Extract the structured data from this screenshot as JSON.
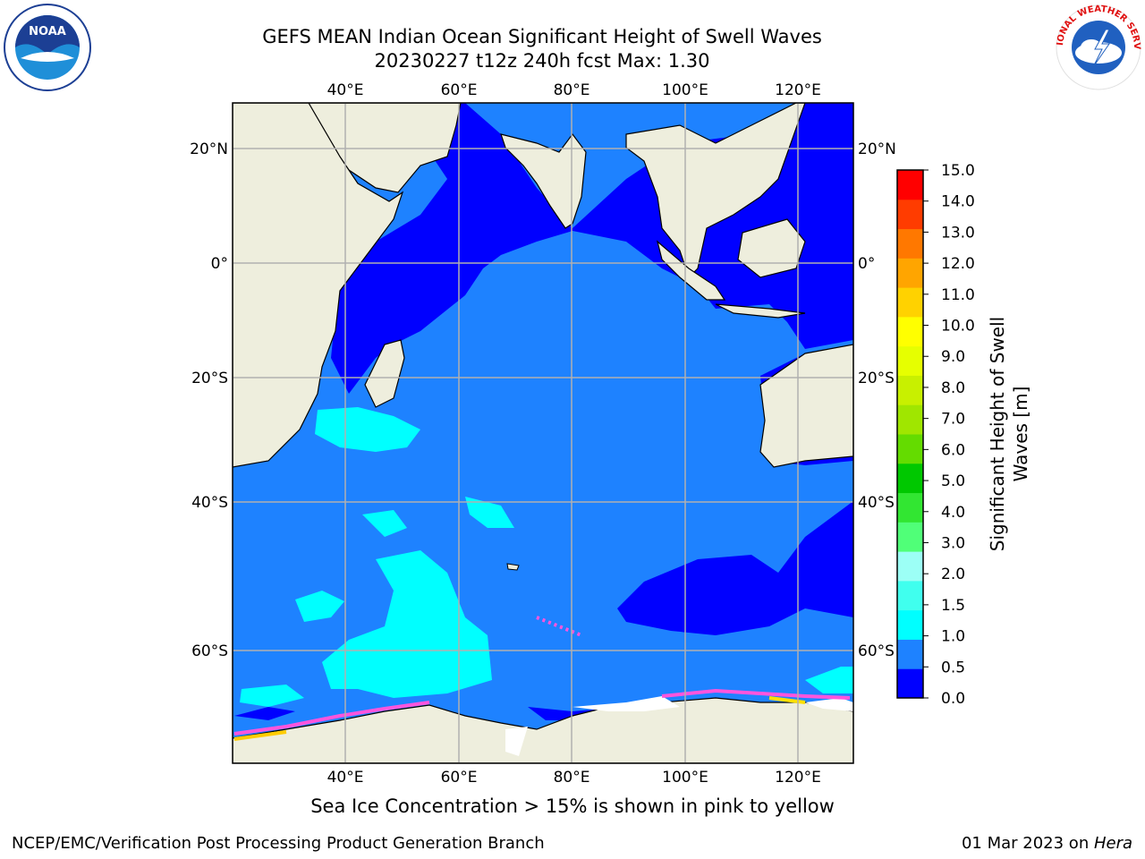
{
  "title": {
    "line1": "GEFS MEAN Indian Ocean Significant Height of Swell Waves",
    "line2": "20230227 t12z 240h fcst   Max: 1.30"
  },
  "logos": {
    "left": {
      "name": "noaa-logo",
      "text": "NOAA"
    },
    "right": {
      "name": "nws-logo",
      "text": "NATIONAL WEATHER SERVICE"
    }
  },
  "map": {
    "lon_labels": [
      "40°E",
      "60°E",
      "80°E",
      "100°E",
      "120°E"
    ],
    "lat_labels": [
      "20°N",
      "0°",
      "20°S",
      "40°S",
      "60°S"
    ]
  },
  "colorbar": {
    "label_line1": "Significant Height of Swell",
    "label_line2": "Waves [m]",
    "ticks": [
      "0.0",
      "0.5",
      "1.0",
      "1.5",
      "2.0",
      "3.0",
      "4.0",
      "5.0",
      "6.0",
      "7.0",
      "8.0",
      "9.0",
      "10.0",
      "11.0",
      "12.0",
      "13.0",
      "14.0",
      "15.0"
    ],
    "colors": [
      "#0000ff",
      "#1e82ff",
      "#00ffff",
      "#40ffee",
      "#9cfff6",
      "#50ff78",
      "#32e632",
      "#00c800",
      "#64dc00",
      "#a0e600",
      "#c8f000",
      "#e6ff00",
      "#ffff00",
      "#ffd200",
      "#ffa500",
      "#ff7800",
      "#ff3c00",
      "#ff0000"
    ]
  },
  "colors": {
    "land": "#eeeedd",
    "ocean_low": "#0000ff",
    "ocean_mid": "#1e82ff",
    "ocean_high": "#00ffff",
    "ice": "#ff55dd",
    "grid": "#b0b0b0"
  },
  "caption": "Sea Ice Concentration > 15% is shown in pink to yellow",
  "footer": {
    "left": "NCEP/EMC/Verification Post Processing Product Generation Branch",
    "date": "01 Mar 2023 on ",
    "host": "Hera"
  }
}
